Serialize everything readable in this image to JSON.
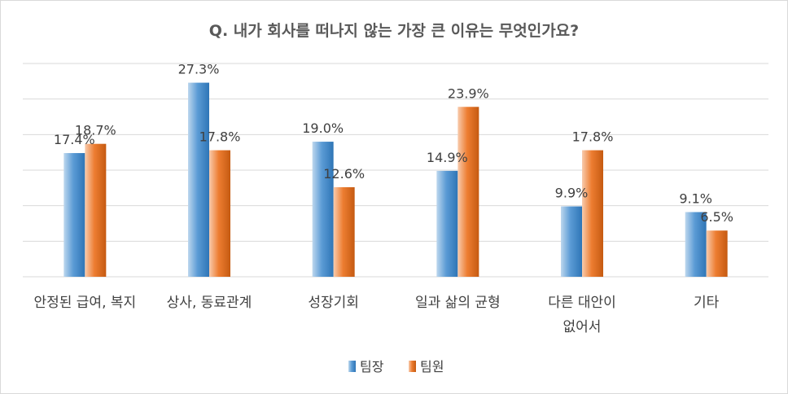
{
  "chart_data": {
    "type": "bar",
    "title": "Q. 내가 회사를 떠나지 않는 가장 큰 이유는 무엇인가요?",
    "categories": [
      [
        "안정된 급여, 복지"
      ],
      [
        "상사, 동료관계"
      ],
      [
        "성장기회"
      ],
      [
        "일과 삶의 균형"
      ],
      [
        "다른 대안이",
        "없어서"
      ],
      [
        "기타"
      ]
    ],
    "series": [
      {
        "name": "팀장",
        "values": [
          17.4,
          27.3,
          19.0,
          14.9,
          9.9,
          9.1
        ],
        "labels": [
          "17.4%",
          "27.3%",
          "19.0%",
          "14.9%",
          "9.9%",
          "9.1%"
        ],
        "color": "#5b9bd5"
      },
      {
        "name": "팀원",
        "values": [
          18.7,
          17.8,
          12.6,
          23.9,
          17.8,
          6.5
        ],
        "labels": [
          "18.7%",
          "17.8%",
          "12.6%",
          "23.9%",
          "17.8%",
          "6.5%"
        ],
        "color": "#ed7d31"
      }
    ],
    "ylim": [
      0,
      30
    ],
    "grid": true,
    "legend": "bottom"
  }
}
